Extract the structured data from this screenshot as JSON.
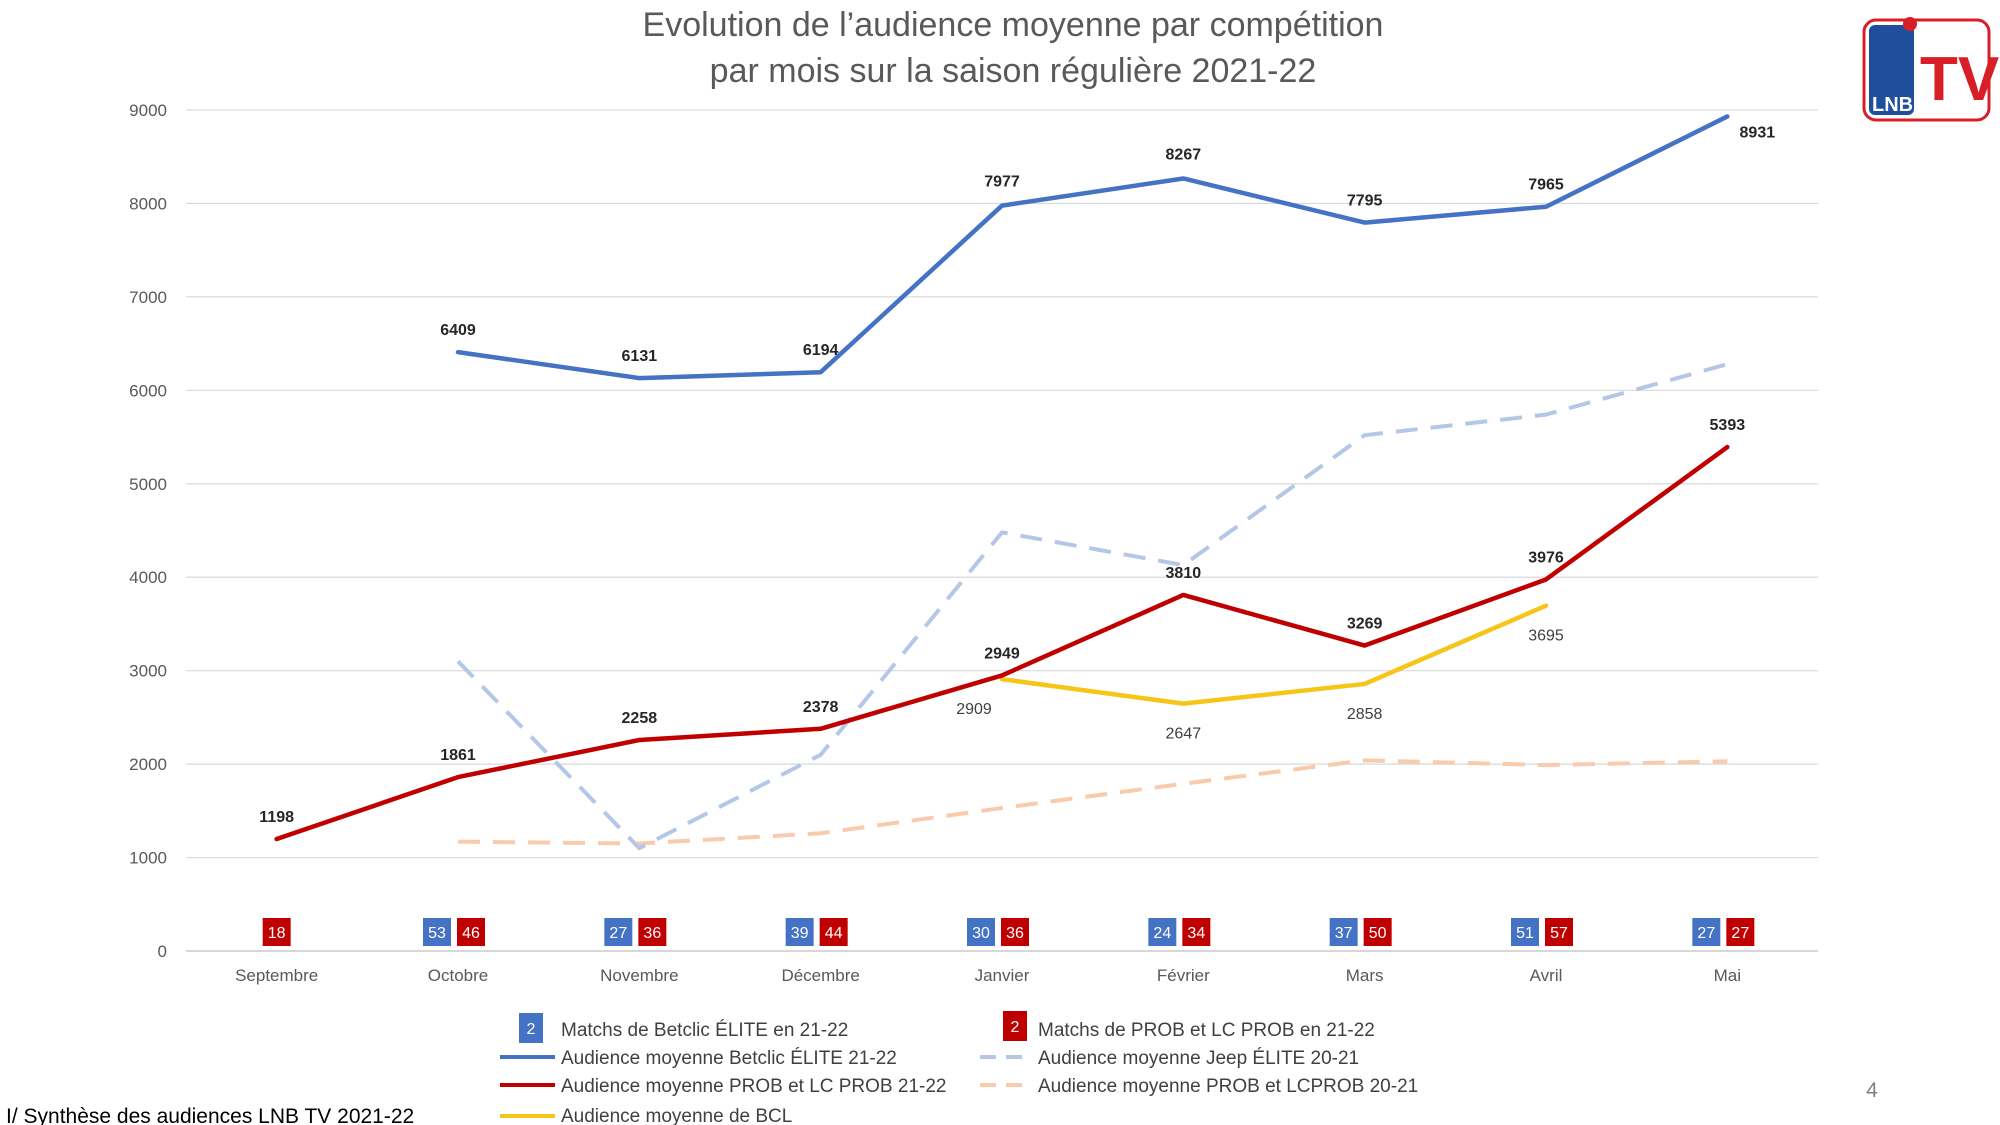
{
  "colors": {
    "elite": "#4472c4",
    "prob": "#c00000",
    "jeep": "#b4c7e7",
    "lcprob2021": "#f8cbad",
    "bcl": "#f5c518"
  },
  "footer": "I/ Synthèse des audiences LNB TV 2021-22",
  "page_number": "4",
  "logo": {
    "big": "TV",
    "small": "LNB"
  },
  "chart_data": {
    "type": "line",
    "title": [
      "Evolution de l’audience moyenne par compétition",
      "par mois sur la saison régulière 2021-22"
    ],
    "categories": [
      "Septembre",
      "Octobre",
      "Novembre",
      "Décembre",
      "Janvier",
      "Février",
      "Mars",
      "Avril",
      "Mai"
    ],
    "ylim": [
      0,
      9000
    ],
    "yticks": [
      0,
      1000,
      2000,
      3000,
      4000,
      5000,
      6000,
      7000,
      8000,
      9000
    ],
    "grid": true,
    "series": [
      {
        "key": "elite",
        "name": "Audience moyenne Betclic ÉLITE 21-22",
        "style": "solid",
        "label": "bold",
        "values": [
          null,
          6409,
          6131,
          6194,
          7977,
          8267,
          7795,
          7965,
          8931
        ]
      },
      {
        "key": "jeep",
        "name": "Audience moyenne Jeep ÉLITE 20-21",
        "style": "dashed",
        "label": "none",
        "values": [
          null,
          3100,
          1100,
          2100,
          4480,
          4130,
          5520,
          5740,
          6280
        ]
      },
      {
        "key": "lcprob2021",
        "name": "Audience moyenne PROB et LCPROB 20-21",
        "style": "dashed",
        "label": "none",
        "values": [
          null,
          1170,
          1150,
          1260,
          1530,
          1790,
          2040,
          1990,
          2030
        ]
      },
      {
        "key": "prob",
        "name": "Audience moyenne PROB et LC PROB 21-22",
        "style": "solid",
        "label": "bold",
        "values": [
          1198,
          1861,
          2258,
          2378,
          2949,
          3810,
          3269,
          3976,
          5393
        ]
      },
      {
        "key": "bcl",
        "name": "Audience moyenne de BCL",
        "style": "solid",
        "label": "normal",
        "values": [
          null,
          null,
          null,
          null,
          2909,
          2647,
          2858,
          3695,
          null
        ]
      }
    ],
    "matches": {
      "elite": [
        null,
        53,
        27,
        39,
        30,
        24,
        37,
        51,
        27
      ],
      "prob": [
        18,
        46,
        36,
        44,
        36,
        34,
        50,
        57,
        27
      ]
    },
    "legend": {
      "badge_example": "2",
      "elite_matches": "Matchs de Betclic ÉLITE en 21-22",
      "prob_matches": "Matchs de PROB et LC PROB en 21-22"
    }
  }
}
